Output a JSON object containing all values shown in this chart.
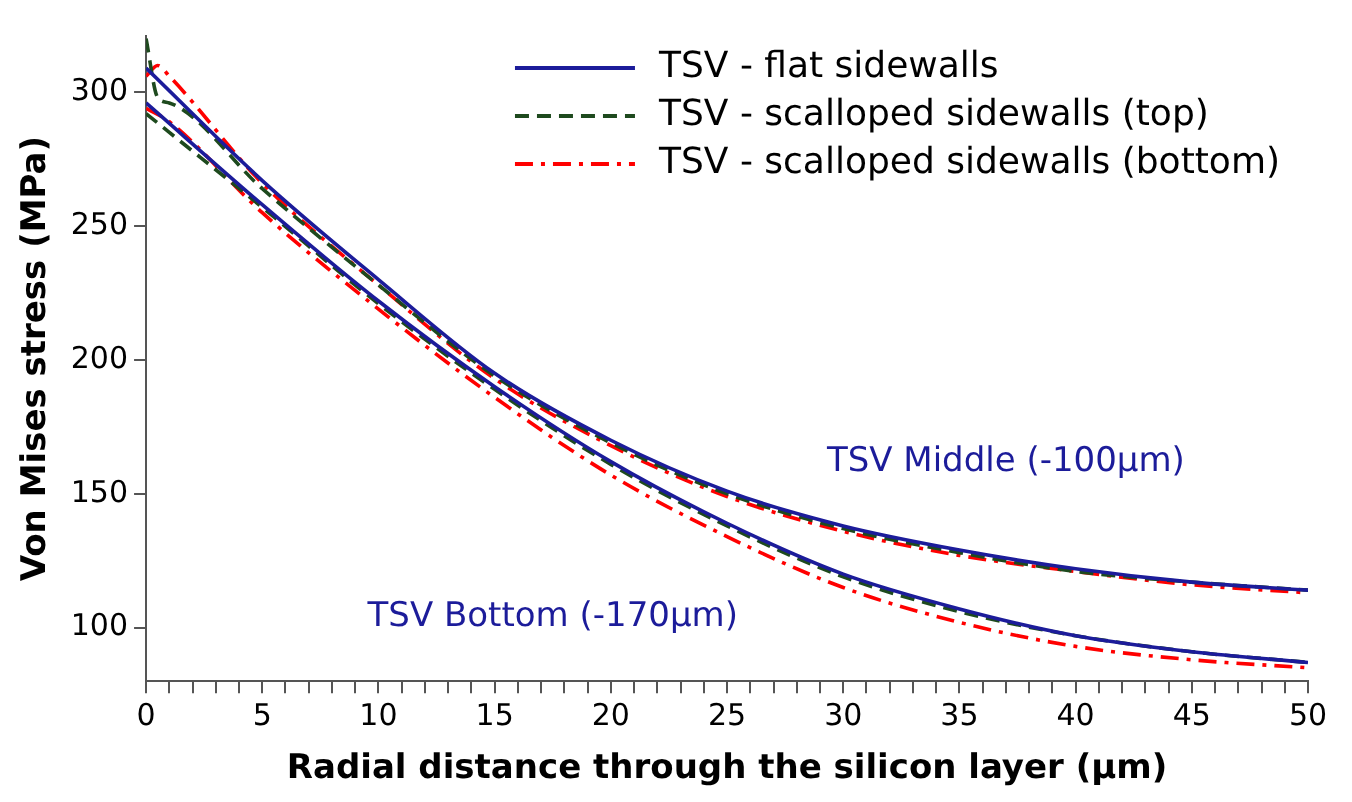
{
  "chart_data": {
    "type": "line",
    "xlabel": "Radial distance through the silicon layer (µm)",
    "ylabel": "Von Mises stress (MPa)",
    "xlim": [
      0,
      50
    ],
    "ylim": [
      80,
      321
    ],
    "xticks": [
      0,
      {
        "value": 1,
        "label": null
      },
      {
        "value": 2,
        "label": null
      },
      {
        "value": 3,
        "label": null
      },
      {
        "value": 4,
        "label": null
      },
      5,
      {
        "value": 6,
        "label": null
      },
      {
        "value": 7,
        "label": null
      },
      {
        "value": 8,
        "label": null
      },
      {
        "value": 9,
        "label": null
      },
      10,
      {
        "value": 11,
        "label": null
      },
      {
        "value": 12,
        "label": null
      },
      {
        "value": 13,
        "label": null
      },
      {
        "value": 14,
        "label": null
      },
      15,
      {
        "value": 16,
        "label": null
      },
      {
        "value": 17,
        "label": null
      },
      {
        "value": 18,
        "label": null
      },
      {
        "value": 19,
        "label": null
      },
      20,
      {
        "value": 21,
        "label": null
      },
      {
        "value": 22,
        "label": null
      },
      {
        "value": 23,
        "label": null
      },
      {
        "value": 24,
        "label": null
      },
      25,
      {
        "value": 26,
        "label": null
      },
      {
        "value": 27,
        "label": null
      },
      {
        "value": 28,
        "label": null
      },
      {
        "value": 29,
        "label": null
      },
      30,
      {
        "value": 31,
        "label": null
      },
      {
        "value": 32,
        "label": null
      },
      {
        "value": 33,
        "label": null
      },
      {
        "value": 34,
        "label": null
      },
      35,
      {
        "value": 36,
        "label": null
      },
      {
        "value": 37,
        "label": null
      },
      {
        "value": 38,
        "label": null
      },
      {
        "value": 39,
        "label": null
      },
      40,
      {
        "value": 41,
        "label": null
      },
      {
        "value": 42,
        "label": null
      },
      {
        "value": 43,
        "label": null
      },
      {
        "value": 44,
        "label": null
      },
      45,
      {
        "value": 46,
        "label": null
      },
      {
        "value": 47,
        "label": null
      },
      {
        "value": 48,
        "label": null
      },
      {
        "value": 49,
        "label": null
      },
      50
    ],
    "yticks": [
      100,
      150,
      200,
      250,
      300
    ],
    "grid": false,
    "legend": "top right",
    "marker": "none",
    "annotations": [
      "TSV Middle (-100µm)",
      "TSV Bottom (-170µm)"
    ],
    "series": [
      {
        "name": "TSV - flat sidewalls",
        "color": "#1c1c9a",
        "line_style": "solid",
        "x": [
          0,
          5,
          10,
          15,
          20,
          25,
          30,
          35,
          40,
          45,
          50
        ],
        "values": [
          309,
          267,
          230,
          195,
          170,
          151,
          138,
          129,
          122,
          117,
          114
        ]
      },
      {
        "name": "TSV - scalloped sidewalls (top)",
        "color": "#1e4a1e",
        "line_style": "dashed",
        "x": [
          0,
          0.5,
          1,
          5,
          10,
          15,
          20,
          25,
          30,
          35,
          40,
          45,
          50
        ],
        "values": [
          320,
          298,
          296,
          264,
          228,
          194,
          169,
          150,
          137,
          128,
          121,
          117,
          114
        ]
      },
      {
        "name": "TSV - scalloped sidewalls (bottom)",
        "color": "#ff0000",
        "line_style": "dashdot",
        "x": [
          0,
          0.5,
          1,
          5,
          10,
          15,
          20,
          25,
          30,
          35,
          40,
          45,
          50
        ],
        "values": [
          306,
          310,
          306,
          266,
          228,
          193,
          168,
          149,
          136,
          127,
          121,
          116,
          113
        ]
      },
      {
        "color": "#1c1c9a",
        "line_style": "solid",
        "x": [
          0,
          5,
          10,
          15,
          20,
          25,
          30,
          35,
          40,
          45,
          50
        ],
        "values": [
          296,
          258,
          222,
          190,
          162,
          139,
          120,
          107,
          97,
          91,
          87
        ]
      },
      {
        "color": "#1e4a1e",
        "line_style": "dashed",
        "x": [
          0,
          1,
          5,
          10,
          15,
          20,
          25,
          30,
          35,
          40,
          45,
          50
        ],
        "values": [
          292,
          285,
          257,
          221,
          189,
          161,
          138,
          119,
          106,
          97,
          91,
          87
        ]
      },
      {
        "color": "#ff0000",
        "line_style": "dashdot",
        "x": [
          0,
          1,
          5,
          10,
          15,
          20,
          25,
          30,
          35,
          40,
          45,
          50
        ],
        "values": [
          294,
          289,
          255,
          219,
          186,
          157,
          134,
          115,
          102,
          93,
          88,
          85
        ]
      }
    ]
  }
}
